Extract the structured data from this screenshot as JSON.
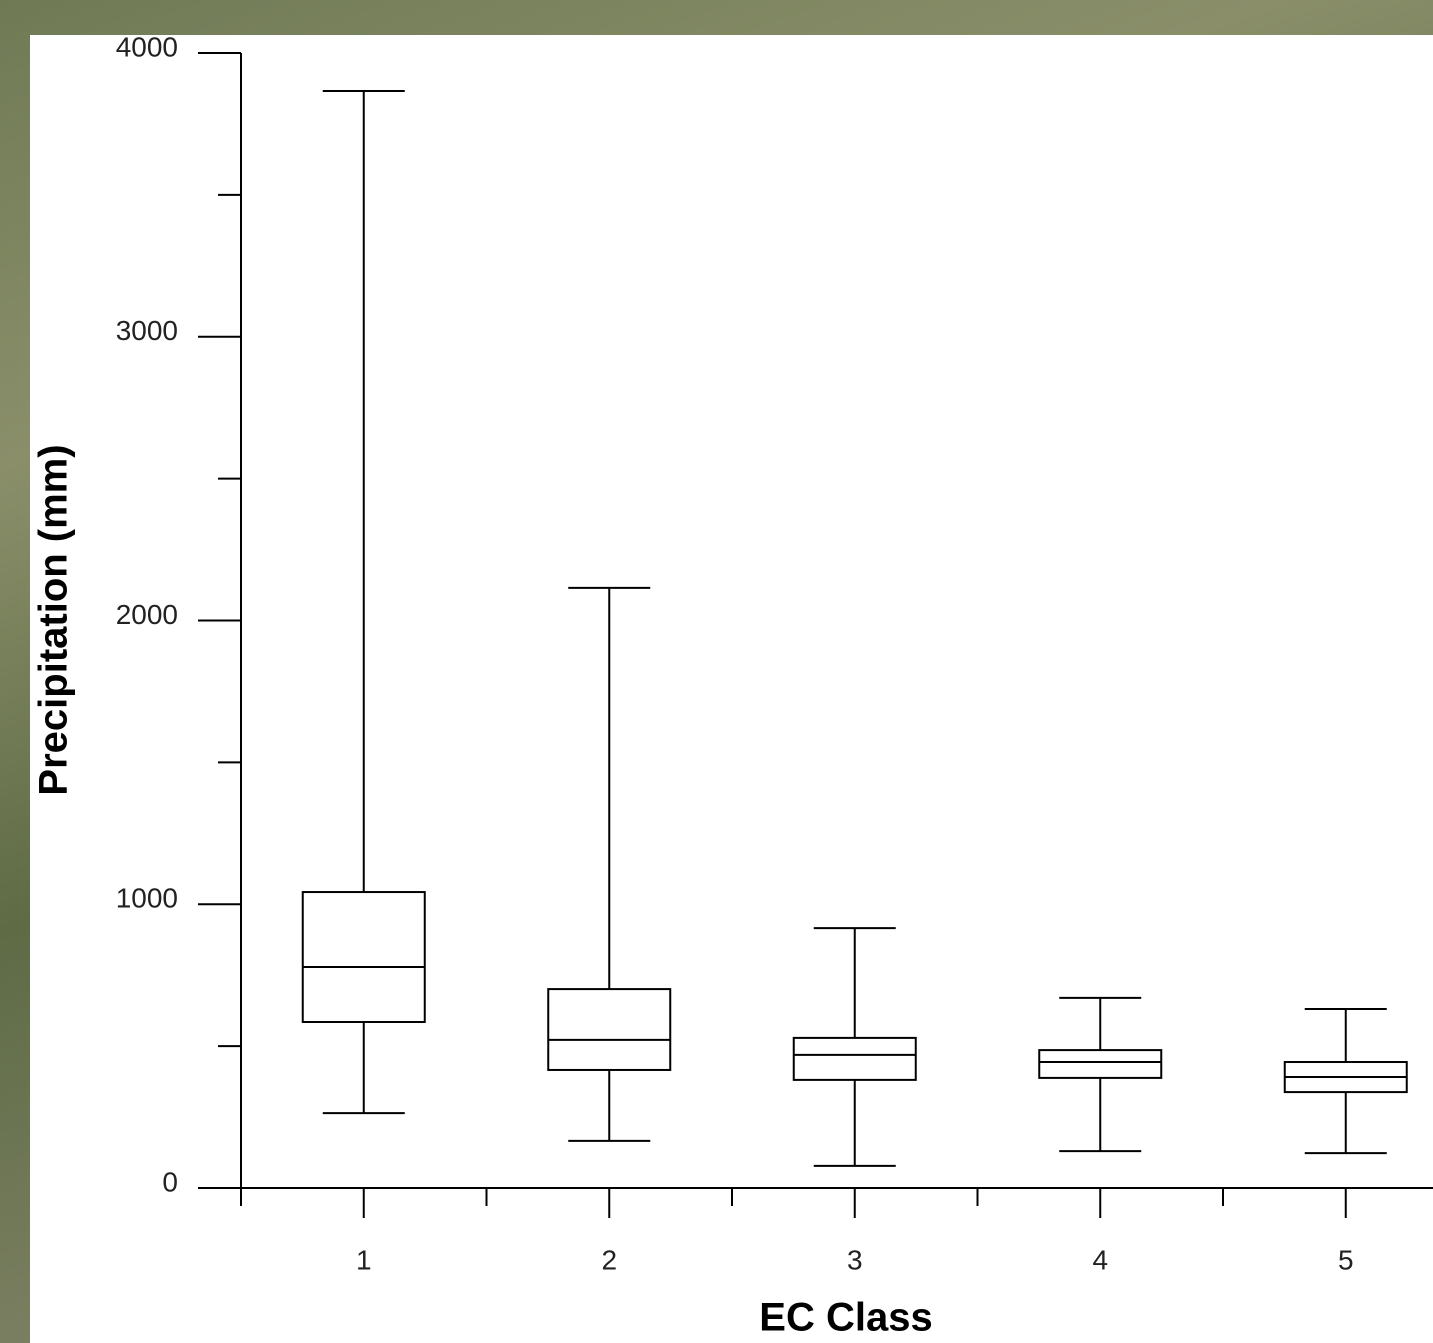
{
  "chart_data": {
    "type": "box",
    "xlabel": "EC Class",
    "ylabel": "Precipitation (mm)",
    "categories": [
      "1",
      "2",
      "3",
      "4",
      "5"
    ],
    "min": [
      264,
      166,
      78,
      130,
      123
    ],
    "q1": [
      585,
      416,
      381,
      388,
      338
    ],
    "median": [
      779,
      522,
      469,
      444,
      391
    ],
    "q3": [
      1043,
      701,
      529,
      486,
      444
    ],
    "max": [
      3866,
      2115,
      916,
      670,
      631
    ],
    "ylim": [
      0,
      4000
    ],
    "yticks": [
      0,
      1000,
      2000,
      3000,
      4000
    ],
    "yminorticks": [
      500,
      1500,
      2500,
      3500
    ],
    "color": "#000000"
  }
}
